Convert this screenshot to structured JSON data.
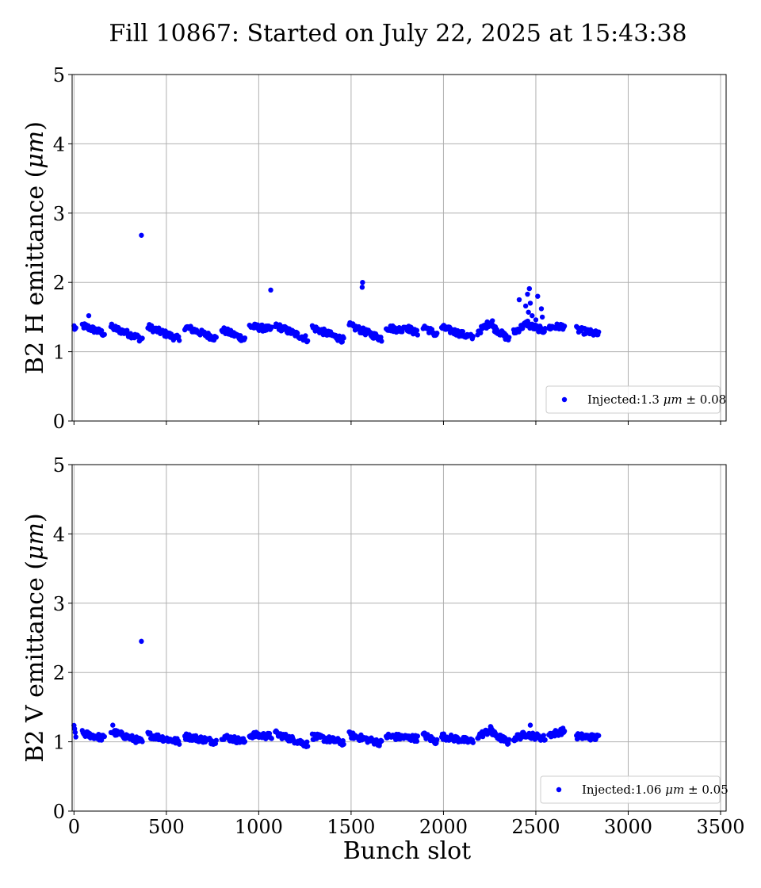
{
  "title": "Fill 10867: Started on July 22, 2025 at 15:43:38",
  "colors": {
    "points": "#0000ff",
    "grid": "#b0b0b0",
    "axes": "#000000"
  },
  "chart_data": [
    {
      "type": "scatter",
      "ylabel_prefix": "B2 H emittance (",
      "ylabel_unit": "μm",
      "ylabel_suffix": ")",
      "xlim": [
        -10,
        3530
      ],
      "ylim": [
        0,
        5
      ],
      "xticks": [
        0,
        500,
        1000,
        1500,
        2000,
        2500,
        3000,
        3500
      ],
      "yticks": [
        0,
        1,
        2,
        3,
        4,
        5
      ],
      "show_xtick_labels": false,
      "grid": true,
      "legend": {
        "placement": "lower-right",
        "prefix": "Injected:",
        "value": "1.3",
        "unit": "μm",
        "pm": "±",
        "spread": "0.08"
      },
      "trains": [
        {
          "x0": 0,
          "x1": 10,
          "y0": 1.36,
          "y1": 1.3
        },
        {
          "x0": 45,
          "x1": 165,
          "y0": 1.38,
          "y1": 1.26
        },
        {
          "x0": 200,
          "x1": 370,
          "y0": 1.36,
          "y1": 1.18
        },
        {
          "x0": 400,
          "x1": 570,
          "y0": 1.36,
          "y1": 1.18
        },
        {
          "x0": 600,
          "x1": 770,
          "y0": 1.36,
          "y1": 1.19
        },
        {
          "x0": 800,
          "x1": 925,
          "y0": 1.32,
          "y1": 1.18
        },
        {
          "x0": 950,
          "x1": 1070,
          "y0": 1.37,
          "y1": 1.32
        },
        {
          "x0": 1090,
          "x1": 1265,
          "y0": 1.38,
          "y1": 1.18
        },
        {
          "x0": 1290,
          "x1": 1460,
          "y0": 1.35,
          "y1": 1.17
        },
        {
          "x0": 1490,
          "x1": 1665,
          "y0": 1.38,
          "y1": 1.19
        },
        {
          "x0": 1690,
          "x1": 1780,
          "y0": 1.35,
          "y1": 1.31
        },
        {
          "x0": 1780,
          "x1": 1860,
          "y0": 1.38,
          "y1": 1.26
        },
        {
          "x0": 1890,
          "x1": 1965,
          "y0": 1.37,
          "y1": 1.24
        },
        {
          "x0": 1990,
          "x1": 2160,
          "y0": 1.35,
          "y1": 1.2
        },
        {
          "x0": 2185,
          "x1": 2265,
          "y0": 1.28,
          "y1": 1.45
        },
        {
          "x0": 2265,
          "x1": 2355,
          "y0": 1.36,
          "y1": 1.18
        },
        {
          "x0": 2380,
          "x1": 2460,
          "y0": 1.28,
          "y1": 1.42
        },
        {
          "x0": 2460,
          "x1": 2550,
          "y0": 1.38,
          "y1": 1.3
        },
        {
          "x0": 2570,
          "x1": 2655,
          "y0": 1.35,
          "y1": 1.37
        },
        {
          "x0": 2720,
          "x1": 2840,
          "y0": 1.32,
          "y1": 1.25
        }
      ],
      "outliers": [
        {
          "x": 365,
          "y": 2.68
        },
        {
          "x": 1065,
          "y": 1.89
        },
        {
          "x": 1560,
          "y": 1.93
        },
        {
          "x": 1562,
          "y": 2.0
        },
        {
          "x": 2410,
          "y": 1.75
        },
        {
          "x": 2445,
          "y": 1.66
        },
        {
          "x": 2455,
          "y": 1.83
        },
        {
          "x": 2460,
          "y": 1.57
        },
        {
          "x": 2465,
          "y": 1.91
        },
        {
          "x": 2470,
          "y": 1.7
        },
        {
          "x": 2480,
          "y": 1.52
        },
        {
          "x": 2500,
          "y": 1.46
        },
        {
          "x": 2510,
          "y": 1.8
        },
        {
          "x": 2530,
          "y": 1.62
        },
        {
          "x": 2535,
          "y": 1.5
        },
        {
          "x": 80,
          "y": 1.52
        }
      ]
    },
    {
      "type": "scatter",
      "xlabel": "Bunch slot",
      "ylabel_prefix": "B2 V emittance (",
      "ylabel_unit": "μm",
      "ylabel_suffix": ")",
      "xlim": [
        -10,
        3530
      ],
      "ylim": [
        0,
        5
      ],
      "xticks": [
        0,
        500,
        1000,
        1500,
        2000,
        2500,
        3000,
        3500
      ],
      "yticks": [
        0,
        1,
        2,
        3,
        4,
        5
      ],
      "show_xtick_labels": true,
      "grid": true,
      "legend": {
        "placement": "lower-right",
        "prefix": "Injected:",
        "value": "1.06",
        "unit": "μm",
        "pm": "±",
        "spread": "0.05"
      },
      "trains": [
        {
          "x0": 0,
          "x1": 10,
          "y0": 1.2,
          "y1": 1.1
        },
        {
          "x0": 45,
          "x1": 165,
          "y0": 1.12,
          "y1": 1.05
        },
        {
          "x0": 200,
          "x1": 370,
          "y0": 1.15,
          "y1": 1.0
        },
        {
          "x0": 400,
          "x1": 570,
          "y0": 1.1,
          "y1": 1.0
        },
        {
          "x0": 600,
          "x1": 770,
          "y0": 1.08,
          "y1": 1.0
        },
        {
          "x0": 800,
          "x1": 925,
          "y0": 1.08,
          "y1": 1.0
        },
        {
          "x0": 950,
          "x1": 1070,
          "y0": 1.1,
          "y1": 1.08
        },
        {
          "x0": 1090,
          "x1": 1265,
          "y0": 1.12,
          "y1": 0.96
        },
        {
          "x0": 1290,
          "x1": 1460,
          "y0": 1.08,
          "y1": 0.99
        },
        {
          "x0": 1490,
          "x1": 1665,
          "y0": 1.1,
          "y1": 0.98
        },
        {
          "x0": 1690,
          "x1": 1860,
          "y0": 1.08,
          "y1": 1.05
        },
        {
          "x0": 1890,
          "x1": 1965,
          "y0": 1.1,
          "y1": 1.0
        },
        {
          "x0": 1990,
          "x1": 2160,
          "y0": 1.08,
          "y1": 1.0
        },
        {
          "x0": 2185,
          "x1": 2265,
          "y0": 1.08,
          "y1": 1.18
        },
        {
          "x0": 2265,
          "x1": 2355,
          "y0": 1.12,
          "y1": 0.99
        },
        {
          "x0": 2380,
          "x1": 2460,
          "y0": 1.05,
          "y1": 1.12
        },
        {
          "x0": 2460,
          "x1": 2550,
          "y0": 1.1,
          "y1": 1.05
        },
        {
          "x0": 2570,
          "x1": 2655,
          "y0": 1.1,
          "y1": 1.16
        },
        {
          "x0": 2720,
          "x1": 2840,
          "y0": 1.08,
          "y1": 1.06
        }
      ],
      "outliers": [
        {
          "x": 365,
          "y": 2.45
        },
        {
          "x": 210,
          "y": 1.24
        },
        {
          "x": 2470,
          "y": 1.24
        },
        {
          "x": 2255,
          "y": 1.22
        }
      ]
    }
  ]
}
